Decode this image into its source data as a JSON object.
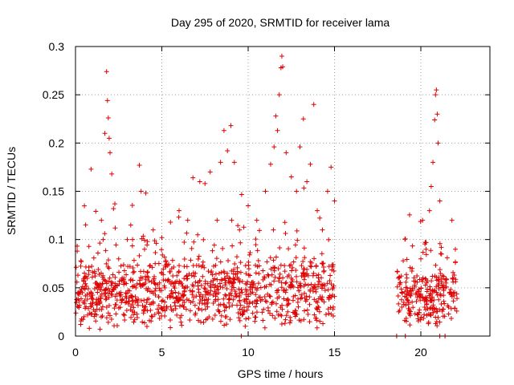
{
  "chart_data": {
    "type": "scatter",
    "title": "Day 295 of 2020, SRMTID for receiver lama",
    "xlabel": "GPS time / hours",
    "ylabel": "SRMTID / TECUs",
    "xlim": [
      0,
      24
    ],
    "ylim": [
      0,
      0.3
    ],
    "x_ticks": [
      0,
      5,
      10,
      15,
      20
    ],
    "y_ticks": [
      0,
      0.05,
      0.1,
      0.15,
      0.2,
      0.25,
      0.3
    ],
    "x_tick_labels": [
      "0",
      "5",
      "10",
      "15",
      "20"
    ],
    "y_tick_labels": [
      "0",
      "0.05",
      "0.1",
      "0.15",
      "0.2",
      "0.25",
      "0.3"
    ],
    "grid": true,
    "marker": "plus",
    "color": "#e00000",
    "series": [
      {
        "name": "SRMTID",
        "segments": [
          {
            "x_range": [
              0,
              15
            ],
            "baseline_mean": 0.045,
            "max_observed": 0.29
          },
          {
            "x_range": [
              18.6,
              22.1
            ],
            "baseline_mean": 0.04,
            "max_observed": 0.255
          }
        ],
        "points": [
          [
            0.1,
            0.088
          ],
          [
            0.2,
            0.03
          ],
          [
            0.3,
            0.012
          ],
          [
            0.4,
            0.045
          ],
          [
            0.5,
            0.02
          ],
          [
            0.6,
            0.062
          ],
          [
            0.8,
            0.008
          ],
          [
            1.0,
            0.035
          ],
          [
            1.2,
            0.055
          ],
          [
            1.3,
            0.086
          ],
          [
            1.5,
            0.12
          ],
          [
            1.6,
            0.1
          ],
          [
            1.7,
            0.21
          ],
          [
            1.8,
            0.274
          ],
          [
            1.85,
            0.244
          ],
          [
            1.9,
            0.226
          ],
          [
            1.95,
            0.205
          ],
          [
            2.0,
            0.19
          ],
          [
            2.1,
            0.168
          ],
          [
            2.2,
            0.132
          ],
          [
            2.3,
            0.112
          ],
          [
            2.5,
            0.08
          ],
          [
            2.8,
            0.06
          ],
          [
            3.0,
            0.1
          ],
          [
            3.2,
            0.115
          ],
          [
            3.5,
            0.05
          ],
          [
            3.7,
            0.177
          ],
          [
            3.8,
            0.15
          ],
          [
            4.0,
            0.09
          ],
          [
            4.5,
            0.11
          ],
          [
            5.0,
            0.102
          ],
          [
            5.5,
            0.118
          ],
          [
            6.0,
            0.13
          ],
          [
            6.5,
            0.12
          ],
          [
            6.8,
            0.164
          ],
          [
            7.2,
            0.16
          ],
          [
            7.5,
            0.158
          ],
          [
            7.8,
            0.17
          ],
          [
            8.2,
            0.12
          ],
          [
            8.4,
            0.18
          ],
          [
            8.6,
            0.213
          ],
          [
            8.8,
            0.192
          ],
          [
            9.0,
            0.218
          ],
          [
            9.2,
            0.18
          ],
          [
            9.5,
            0.11
          ],
          [
            10.0,
            0.135
          ],
          [
            10.5,
            0.12
          ],
          [
            11.0,
            0.15
          ],
          [
            11.3,
            0.178
          ],
          [
            11.5,
            0.196
          ],
          [
            11.6,
            0.228
          ],
          [
            11.7,
            0.213
          ],
          [
            11.8,
            0.25
          ],
          [
            11.9,
            0.278
          ],
          [
            11.95,
            0.29
          ],
          [
            12.0,
            0.279
          ],
          [
            12.2,
            0.19
          ],
          [
            12.5,
            0.165
          ],
          [
            12.8,
            0.15
          ],
          [
            13.0,
            0.196
          ],
          [
            13.2,
            0.225
          ],
          [
            13.4,
            0.16
          ],
          [
            13.6,
            0.178
          ],
          [
            13.8,
            0.24
          ],
          [
            14.0,
            0.13
          ],
          [
            14.3,
            0.11
          ],
          [
            14.6,
            0.15
          ],
          [
            14.8,
            0.175
          ],
          [
            15.0,
            0.14
          ],
          [
            9.6,
            0.0
          ],
          [
            18.6,
            0.0
          ],
          [
            19.1,
            0.0
          ],
          [
            21.1,
            0.0
          ],
          [
            21.4,
            0.0
          ],
          [
            18.7,
            0.06
          ],
          [
            18.9,
            0.03
          ],
          [
            19.2,
            0.05
          ],
          [
            19.5,
            0.07
          ],
          [
            19.8,
            0.04
          ],
          [
            20.0,
            0.08
          ],
          [
            20.1,
            0.12
          ],
          [
            20.3,
            0.09
          ],
          [
            20.5,
            0.13
          ],
          [
            20.6,
            0.155
          ],
          [
            20.7,
            0.18
          ],
          [
            20.8,
            0.224
          ],
          [
            20.85,
            0.25
          ],
          [
            20.9,
            0.255
          ],
          [
            20.95,
            0.23
          ],
          [
            21.0,
            0.2
          ],
          [
            21.1,
            0.14
          ],
          [
            21.2,
            0.085
          ],
          [
            21.4,
            0.05
          ],
          [
            21.6,
            0.03
          ],
          [
            21.8,
            0.12
          ],
          [
            22.0,
            0.09
          ]
        ]
      }
    ]
  }
}
